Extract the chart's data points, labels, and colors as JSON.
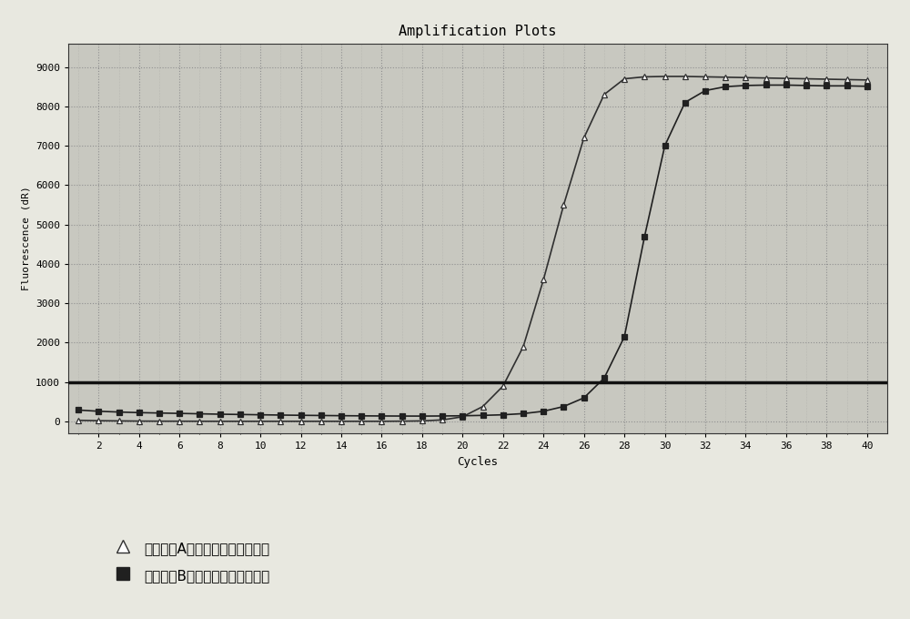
{
  "title": "Amplification Plots",
  "xlabel": "Cycles",
  "ylabel": "Fluorescence (dR)",
  "xlim": [
    0.5,
    41
  ],
  "ylim": [
    -300,
    9600
  ],
  "xticks": [
    2,
    4,
    6,
    8,
    10,
    12,
    14,
    16,
    18,
    20,
    22,
    24,
    26,
    28,
    30,
    32,
    34,
    36,
    38,
    40
  ],
  "yticks": [
    0,
    1000,
    2000,
    3000,
    4000,
    5000,
    6000,
    7000,
    8000,
    9000
  ],
  "threshold_y": 1000,
  "plot_bg_color": "#c8c8c0",
  "fig_bg_color": "#e8e8e0",
  "grid_color": "#909090",
  "series_A_label": "反应体系A扩增所对应的扩增曲线",
  "series_B_label": "反应体系B扩增所对应的扩增曲线",
  "series_A_color": "#303030",
  "series_B_color": "#202020",
  "series_A_x": [
    1,
    2,
    3,
    4,
    5,
    6,
    7,
    8,
    9,
    10,
    11,
    12,
    13,
    14,
    15,
    16,
    17,
    18,
    19,
    20,
    21,
    22,
    23,
    24,
    25,
    26,
    27,
    28,
    29,
    30,
    31,
    32,
    33,
    34,
    35,
    36,
    37,
    38,
    39,
    40
  ],
  "series_A_y": [
    30,
    20,
    15,
    10,
    8,
    7,
    6,
    5,
    5,
    5,
    5,
    5,
    5,
    5,
    5,
    5,
    8,
    15,
    40,
    120,
    380,
    900,
    1900,
    3600,
    5500,
    7200,
    8300,
    8700,
    8750,
    8760,
    8760,
    8750,
    8740,
    8730,
    8720,
    8710,
    8700,
    8690,
    8680,
    8670
  ],
  "series_B_x": [
    1,
    2,
    3,
    4,
    5,
    6,
    7,
    8,
    9,
    10,
    11,
    12,
    13,
    14,
    15,
    16,
    17,
    18,
    19,
    20,
    21,
    22,
    23,
    24,
    25,
    26,
    27,
    28,
    29,
    30,
    31,
    32,
    33,
    34,
    35,
    36,
    37,
    38,
    39,
    40
  ],
  "series_B_y": [
    290,
    260,
    240,
    225,
    215,
    205,
    195,
    185,
    178,
    170,
    163,
    157,
    152,
    147,
    143,
    140,
    138,
    137,
    140,
    145,
    155,
    170,
    200,
    260,
    380,
    600,
    1100,
    2150,
    4700,
    7000,
    8100,
    8400,
    8500,
    8530,
    8540,
    8540,
    8530,
    8520,
    8520,
    8510
  ],
  "figsize": [
    10.0,
    6.8
  ],
  "dpi": 100
}
